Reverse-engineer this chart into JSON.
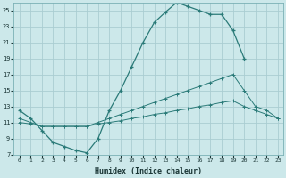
{
  "xlabel": "Humidex (Indice chaleur)",
  "bg_color": "#cce8ea",
  "grid_color": "#aacdd2",
  "line_color": "#2a7a78",
  "xlim": [
    -0.5,
    23.5
  ],
  "ylim": [
    7,
    26
  ],
  "xticks": [
    0,
    1,
    2,
    3,
    4,
    5,
    6,
    7,
    8,
    9,
    10,
    11,
    12,
    13,
    14,
    15,
    16,
    17,
    18,
    19,
    20,
    21,
    22,
    23
  ],
  "yticks": [
    7,
    9,
    11,
    13,
    15,
    17,
    19,
    21,
    23,
    25
  ],
  "line1_x": [
    0,
    1,
    2,
    3,
    4,
    5,
    6,
    7,
    8,
    9,
    10,
    11,
    12,
    13,
    14,
    15,
    16,
    17,
    18,
    19,
    20
  ],
  "line1_y": [
    12.5,
    11.5,
    10.0,
    8.5,
    8.0,
    7.5,
    7.2,
    9.0,
    12.5,
    15.0,
    18.0,
    21.0,
    23.5,
    24.8,
    26.0,
    25.5,
    25.0,
    24.5,
    24.5,
    22.5,
    19.0
  ],
  "line2_x": [
    0,
    1,
    2,
    3,
    4,
    5,
    6,
    7,
    8,
    9,
    10,
    11,
    12,
    13,
    14,
    15,
    16,
    17,
    18,
    19,
    20,
    21,
    22,
    23
  ],
  "line2_y": [
    11.5,
    11.0,
    10.5,
    10.5,
    10.5,
    10.5,
    10.5,
    11.0,
    11.5,
    12.0,
    12.5,
    13.0,
    13.5,
    14.0,
    14.5,
    15.0,
    15.5,
    16.0,
    16.5,
    17.0,
    15.0,
    13.0,
    12.5,
    11.5
  ],
  "line3_x": [
    0,
    1,
    2,
    3,
    4,
    5,
    6,
    7,
    8,
    9,
    10,
    11,
    12,
    13,
    14,
    15,
    16,
    17,
    18,
    19,
    20,
    21,
    22,
    23
  ],
  "line3_y": [
    11.0,
    10.8,
    10.5,
    10.5,
    10.5,
    10.5,
    10.5,
    10.8,
    11.0,
    11.2,
    11.5,
    11.7,
    12.0,
    12.2,
    12.5,
    12.7,
    13.0,
    13.2,
    13.5,
    13.7,
    13.0,
    12.5,
    12.0,
    11.5
  ]
}
